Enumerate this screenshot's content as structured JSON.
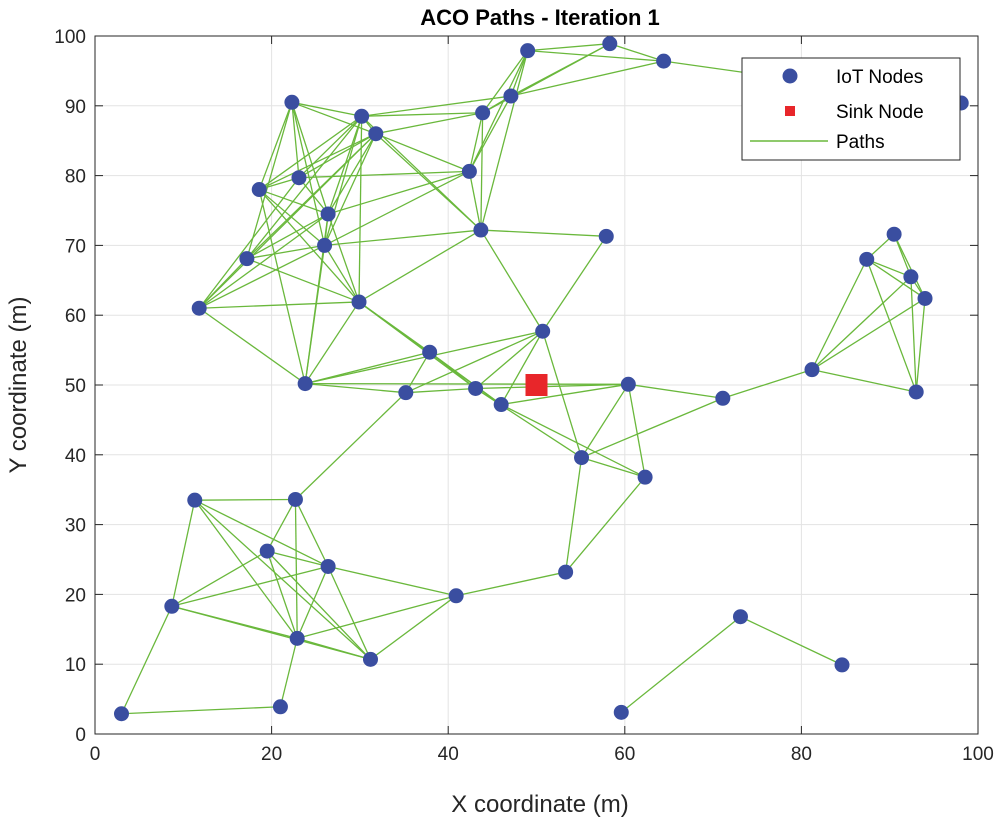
{
  "chart_data": {
    "type": "scatter",
    "title": "ACO Paths - Iteration 1",
    "xlabel": "X coordinate (m)",
    "ylabel": "Y coordinate (m)",
    "xlim": [
      0,
      100
    ],
    "ylim": [
      0,
      100
    ],
    "xticks": [
      0,
      20,
      40,
      60,
      80,
      100
    ],
    "yticks": [
      0,
      10,
      20,
      30,
      40,
      50,
      60,
      70,
      80,
      90,
      100
    ],
    "grid": true,
    "legend_position": "top-right",
    "legend": [
      {
        "label": "IoT Nodes",
        "marker": "circle"
      },
      {
        "label": "Sink Node",
        "marker": "square"
      },
      {
        "label": "Paths",
        "marker": "line"
      }
    ],
    "colors": {
      "node": "#3a4ea0",
      "sink": "#e8262a",
      "path": "#6ab83c",
      "grid": "#e3e3e3",
      "axis": "#262626"
    },
    "sink": {
      "x": 50,
      "y": 50
    },
    "nodes": [
      {
        "id": "A",
        "x": 3,
        "y": 2.9
      },
      {
        "id": "B",
        "x": 8.7,
        "y": 18.3
      },
      {
        "id": "C",
        "x": 11.3,
        "y": 33.5
      },
      {
        "id": "D",
        "x": 19.5,
        "y": 26.2
      },
      {
        "id": "E",
        "x": 22.7,
        "y": 33.6
      },
      {
        "id": "F",
        "x": 26.4,
        "y": 24
      },
      {
        "id": "G",
        "x": 22.9,
        "y": 13.7
      },
      {
        "id": "H",
        "x": 31.2,
        "y": 10.7
      },
      {
        "id": "I",
        "x": 21,
        "y": 3.9
      },
      {
        "id": "J",
        "x": 40.9,
        "y": 19.8
      },
      {
        "id": "K",
        "x": 53.3,
        "y": 23.2
      },
      {
        "id": "L",
        "x": 59.6,
        "y": 3.1
      },
      {
        "id": "M",
        "x": 73.1,
        "y": 16.8
      },
      {
        "id": "N",
        "x": 84.6,
        "y": 9.9
      },
      {
        "id": "O",
        "x": 62.3,
        "y": 36.8
      },
      {
        "id": "P",
        "x": 55.1,
        "y": 39.6
      },
      {
        "id": "Q",
        "x": 71.1,
        "y": 48.1
      },
      {
        "id": "R",
        "x": 60.4,
        "y": 50.1
      },
      {
        "id": "S",
        "x": 46,
        "y": 47.2
      },
      {
        "id": "T",
        "x": 43.1,
        "y": 49.5
      },
      {
        "id": "U",
        "x": 35.2,
        "y": 48.9
      },
      {
        "id": "V",
        "x": 37.9,
        "y": 54.7
      },
      {
        "id": "W",
        "x": 50.7,
        "y": 57.7
      },
      {
        "id": "X",
        "x": 23.8,
        "y": 50.2
      },
      {
        "id": "Y",
        "x": 11.8,
        "y": 61
      },
      {
        "id": "Z",
        "x": 29.9,
        "y": 61.9
      },
      {
        "id": "AA",
        "x": 17.2,
        "y": 68.1
      },
      {
        "id": "AB",
        "x": 26,
        "y": 70
      },
      {
        "id": "AC",
        "x": 26.4,
        "y": 74.5
      },
      {
        "id": "AD",
        "x": 18.6,
        "y": 78
      },
      {
        "id": "AE",
        "x": 23.1,
        "y": 79.7
      },
      {
        "id": "AF",
        "x": 22.3,
        "y": 90.5
      },
      {
        "id": "AG",
        "x": 30.2,
        "y": 88.5
      },
      {
        "id": "AH",
        "x": 31.8,
        "y": 86
      },
      {
        "id": "AI",
        "x": 42.4,
        "y": 80.6
      },
      {
        "id": "AJ",
        "x": 43.7,
        "y": 72.2
      },
      {
        "id": "AK",
        "x": 43.9,
        "y": 89
      },
      {
        "id": "AL",
        "x": 47.1,
        "y": 91.4
      },
      {
        "id": "AM",
        "x": 49,
        "y": 97.9
      },
      {
        "id": "AN",
        "x": 58.3,
        "y": 98.9
      },
      {
        "id": "AO",
        "x": 64.4,
        "y": 96.4
      },
      {
        "id": "AP",
        "x": 57.9,
        "y": 71.3
      },
      {
        "id": "AQ",
        "x": 98.1,
        "y": 90.4
      },
      {
        "id": "AR",
        "x": 81.2,
        "y": 52.2
      },
      {
        "id": "AS",
        "x": 87.4,
        "y": 68
      },
      {
        "id": "AT",
        "x": 90.5,
        "y": 71.6
      },
      {
        "id": "AU",
        "x": 92.4,
        "y": 65.5
      },
      {
        "id": "AV",
        "x": 94,
        "y": 62.4
      },
      {
        "id": "AW",
        "x": 93,
        "y": 49
      }
    ],
    "paths": [
      [
        "A",
        "B"
      ],
      [
        "A",
        "I"
      ],
      [
        "B",
        "C"
      ],
      [
        "B",
        "D"
      ],
      [
        "B",
        "F"
      ],
      [
        "B",
        "G"
      ],
      [
        "B",
        "H"
      ],
      [
        "C",
        "E"
      ],
      [
        "C",
        "F"
      ],
      [
        "C",
        "G"
      ],
      [
        "C",
        "H"
      ],
      [
        "D",
        "E"
      ],
      [
        "D",
        "F"
      ],
      [
        "D",
        "G"
      ],
      [
        "D",
        "H"
      ],
      [
        "E",
        "F"
      ],
      [
        "E",
        "G"
      ],
      [
        "E",
        "U"
      ],
      [
        "F",
        "G"
      ],
      [
        "F",
        "H"
      ],
      [
        "F",
        "J"
      ],
      [
        "G",
        "H"
      ],
      [
        "G",
        "J"
      ],
      [
        "G",
        "I"
      ],
      [
        "H",
        "J"
      ],
      [
        "J",
        "K"
      ],
      [
        "K",
        "P"
      ],
      [
        "K",
        "O"
      ],
      [
        "L",
        "M"
      ],
      [
        "M",
        "N"
      ],
      [
        "O",
        "P"
      ],
      [
        "O",
        "R"
      ],
      [
        "O",
        "S"
      ],
      [
        "P",
        "R"
      ],
      [
        "P",
        "Q"
      ],
      [
        "P",
        "W"
      ],
      [
        "P",
        "T"
      ],
      [
        "R",
        "Q"
      ],
      [
        "R",
        "S"
      ],
      [
        "R",
        "T"
      ],
      [
        "R",
        "X"
      ],
      [
        "Q",
        "AR"
      ],
      [
        "AR",
        "AW"
      ],
      [
        "AR",
        "AS"
      ],
      [
        "AR",
        "AU"
      ],
      [
        "AR",
        "AV"
      ],
      [
        "AS",
        "AT"
      ],
      [
        "AS",
        "AU"
      ],
      [
        "AS",
        "AV"
      ],
      [
        "AS",
        "AW"
      ],
      [
        "AT",
        "AU"
      ],
      [
        "AT",
        "AV"
      ],
      [
        "AU",
        "AV"
      ],
      [
        "AU",
        "AW"
      ],
      [
        "AV",
        "AW"
      ],
      [
        "S",
        "T"
      ],
      [
        "S",
        "V"
      ],
      [
        "S",
        "W"
      ],
      [
        "S",
        "Z"
      ],
      [
        "T",
        "U"
      ],
      [
        "T",
        "V"
      ],
      [
        "T",
        "W"
      ],
      [
        "T",
        "Z"
      ],
      [
        "U",
        "W"
      ],
      [
        "U",
        "V"
      ],
      [
        "U",
        "X"
      ],
      [
        "V",
        "Z"
      ],
      [
        "V",
        "X"
      ],
      [
        "W",
        "AJ"
      ],
      [
        "W",
        "AP"
      ],
      [
        "W",
        "X"
      ],
      [
        "X",
        "Y"
      ],
      [
        "X",
        "Z"
      ],
      [
        "X",
        "AB"
      ],
      [
        "X",
        "AC"
      ],
      [
        "X",
        "AD"
      ],
      [
        "Y",
        "Z"
      ],
      [
        "Y",
        "AA"
      ],
      [
        "Y",
        "AB"
      ],
      [
        "Y",
        "AC"
      ],
      [
        "Y",
        "AE"
      ],
      [
        "Y",
        "AH"
      ],
      [
        "Z",
        "AA"
      ],
      [
        "Z",
        "AB"
      ],
      [
        "Z",
        "AC"
      ],
      [
        "Z",
        "AD"
      ],
      [
        "Z",
        "AJ"
      ],
      [
        "Z",
        "AG"
      ],
      [
        "AA",
        "AB"
      ],
      [
        "AA",
        "AC"
      ],
      [
        "AA",
        "AG"
      ],
      [
        "AA",
        "AF"
      ],
      [
        "AA",
        "AH"
      ],
      [
        "AB",
        "AC"
      ],
      [
        "AB",
        "AD"
      ],
      [
        "AB",
        "AG"
      ],
      [
        "AB",
        "AH"
      ],
      [
        "AB",
        "AJ"
      ],
      [
        "AB",
        "AI"
      ],
      [
        "AB",
        "AF"
      ],
      [
        "AC",
        "AD"
      ],
      [
        "AC",
        "AE"
      ],
      [
        "AC",
        "AF"
      ],
      [
        "AC",
        "AG"
      ],
      [
        "AC",
        "AH"
      ],
      [
        "AC",
        "AI"
      ],
      [
        "AD",
        "AE"
      ],
      [
        "AD",
        "AF"
      ],
      [
        "AD",
        "AG"
      ],
      [
        "AD",
        "AH"
      ],
      [
        "AE",
        "AF"
      ],
      [
        "AE",
        "AG"
      ],
      [
        "AE",
        "AH"
      ],
      [
        "AE",
        "AI"
      ],
      [
        "AF",
        "AG"
      ],
      [
        "AF",
        "AH"
      ],
      [
        "AG",
        "AH"
      ],
      [
        "AG",
        "AK"
      ],
      [
        "AG",
        "AL"
      ],
      [
        "AG",
        "AJ"
      ],
      [
        "AH",
        "AI"
      ],
      [
        "AH",
        "AJ"
      ],
      [
        "AH",
        "AK"
      ],
      [
        "AI",
        "AK"
      ],
      [
        "AI",
        "AL"
      ],
      [
        "AI",
        "AM"
      ],
      [
        "AI",
        "AJ"
      ],
      [
        "AJ",
        "AP"
      ],
      [
        "AJ",
        "AK"
      ],
      [
        "AJ",
        "AM"
      ],
      [
        "AK",
        "AL"
      ],
      [
        "AK",
        "AM"
      ],
      [
        "AK",
        "AN"
      ],
      [
        "AL",
        "AM"
      ],
      [
        "AL",
        "AN"
      ],
      [
        "AL",
        "AO"
      ],
      [
        "AM",
        "AN"
      ],
      [
        "AM",
        "AO"
      ],
      [
        "AN",
        "AO"
      ],
      [
        "AO",
        "AQ"
      ]
    ]
  }
}
